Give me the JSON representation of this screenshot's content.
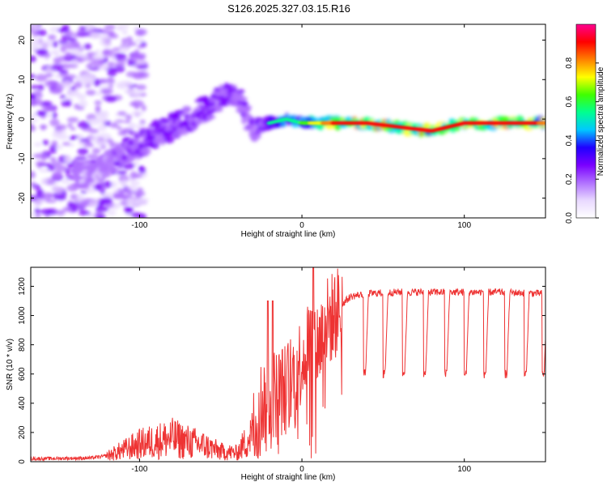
{
  "title": "S126.2025.327.03.15.R16",
  "chart_data": [
    {
      "type": "heatmap",
      "name": "spectrogram",
      "xlabel": "Height of straight line (km)",
      "ylabel": "Frequency (Hz)",
      "xlim": [
        -167,
        150
      ],
      "ylim": [
        -25,
        24
      ],
      "xticks": [
        -100,
        0,
        100
      ],
      "yticks": [
        -20,
        -10,
        0,
        10,
        20
      ],
      "colorbar": {
        "label": "Normalized spectral amplitude",
        "range": [
          0.0,
          1.0
        ],
        "ticks": [
          0.0,
          0.2,
          0.4,
          0.6,
          0.8
        ],
        "colormap": [
          "#ffffff",
          "#e8d8ff",
          "#b070ff",
          "#7a00ff",
          "#2000ff",
          "#00c8ff",
          "#00ff90",
          "#40ff00",
          "#ffff00",
          "#ff8000",
          "#ff0000",
          "#ff0090"
        ]
      },
      "ridge": {
        "height_km": [
          -130,
          -110,
          -90,
          -70,
          -50,
          -40,
          -30,
          -20,
          -10,
          0,
          20,
          40,
          60,
          80,
          100,
          120,
          150
        ],
        "frequency_hz": [
          -14,
          -9,
          -4,
          0,
          5,
          7,
          -3,
          -1,
          0,
          -1,
          -1,
          -1,
          -2,
          -3,
          -1,
          -1,
          -1
        ],
        "amplitude": [
          0.25,
          0.3,
          0.35,
          0.35,
          0.35,
          0.3,
          0.3,
          0.5,
          0.55,
          0.6,
          0.9,
          0.95,
          0.95,
          0.9,
          0.9,
          0.95,
          0.85
        ]
      }
    },
    {
      "type": "line",
      "name": "snr",
      "xlabel": "Height of straight line (km)",
      "ylabel": "SNR (10 * v/v)",
      "xlim": [
        -167,
        150
      ],
      "ylim": [
        0,
        1330
      ],
      "xticks": [
        -100,
        0,
        100
      ],
      "yticks": [
        0,
        200,
        400,
        600,
        800,
        1000,
        1200
      ],
      "color": "#ee3333",
      "envelope": {
        "x": [
          -167,
          -130,
          -120,
          -100,
          -80,
          -60,
          -50,
          -40,
          -30,
          -25,
          -20,
          -10,
          0,
          5,
          10,
          15,
          20,
          25,
          30,
          40,
          60,
          80,
          100,
          120,
          150
        ],
        "y": [
          20,
          25,
          40,
          120,
          160,
          110,
          70,
          60,
          200,
          400,
          450,
          500,
          700,
          850,
          800,
          950,
          1000,
          1080,
          1130,
          1150,
          1160,
          1160,
          1160,
          1160,
          1150
        ]
      },
      "dropouts_x": [
        38,
        50,
        62,
        75,
        88,
        100,
        112,
        125,
        137,
        148
      ],
      "dropout_level": 600,
      "spikes": [
        {
          "x": -21,
          "y": 1100
        },
        {
          "x": -18,
          "y": 1100
        },
        {
          "x": 7,
          "y": 1330
        }
      ]
    }
  ]
}
